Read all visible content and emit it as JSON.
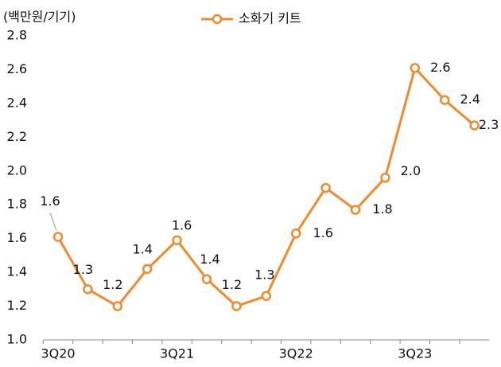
{
  "chart_data": {
    "type": "line",
    "y_axis_label": "(백만원/기기)",
    "categories": [
      "3Q20",
      null,
      null,
      null,
      "3Q21",
      null,
      null,
      null,
      "3Q22",
      null,
      null,
      null,
      "3Q23",
      null,
      null
    ],
    "series": [
      {
        "name": "소화기 키트",
        "color": "#f08a2c",
        "values": [
          1.61,
          1.3,
          1.2,
          1.42,
          1.59,
          1.36,
          1.2,
          1.26,
          1.63,
          1.9,
          1.77,
          1.96,
          2.61,
          2.42,
          2.27
        ],
        "value_labels": [
          "1.6",
          "1.3",
          "1.2",
          "1.4",
          "1.6",
          "1.4",
          "1.2",
          "1.3",
          "1.6",
          null,
          "1.8",
          "2.0",
          "2.6",
          "2.4",
          "2.3"
        ]
      }
    ],
    "ylim": [
      1.0,
      2.8
    ],
    "yticks": [
      {
        "value": 1.0,
        "label": "1.0"
      },
      1.2,
      1.4,
      1.6,
      1.8,
      {
        "value": 2.0,
        "label": "2.0"
      },
      2.2,
      2.4,
      2.6,
      2.8
    ],
    "legend": "top"
  }
}
